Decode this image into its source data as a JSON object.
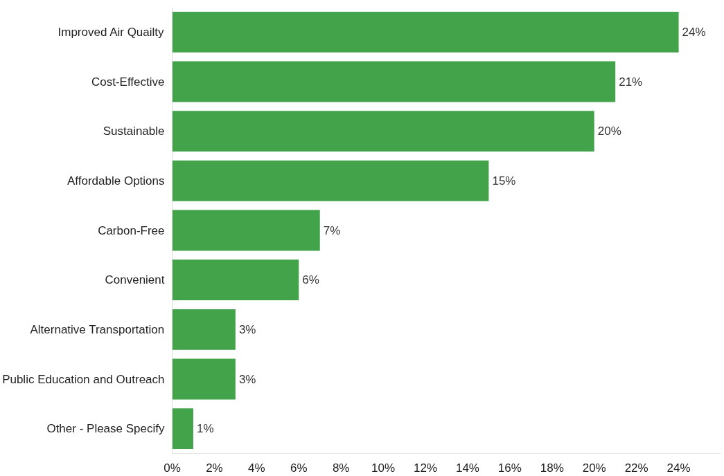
{
  "chart_data": {
    "type": "bar",
    "orientation": "horizontal",
    "categories": [
      "Improved Air Quailty",
      "Cost-Effective",
      "Sustainable",
      "Affordable Options",
      "Carbon-Free",
      "Convenient",
      "Alternative Transportation",
      "Public Education and Outreach",
      "Other - Please Specify"
    ],
    "values": [
      24,
      21,
      20,
      15,
      7,
      6,
      3,
      3,
      1
    ],
    "value_labels": [
      "24%",
      "21%",
      "20%",
      "15%",
      "7%",
      "6%",
      "3%",
      "3%",
      "1%"
    ],
    "color": "#43a34a",
    "xlim": [
      0,
      26
    ],
    "xticks": [
      {
        "value": 0,
        "label": "0%"
      },
      {
        "value": 2,
        "label": "2%"
      },
      {
        "value": 4,
        "label": "4%"
      },
      {
        "value": 6,
        "label": "6%"
      },
      {
        "value": 8,
        "label": "8%"
      },
      {
        "value": 10,
        "label": "10%"
      },
      {
        "value": 12,
        "label": "12%"
      },
      {
        "value": 14,
        "label": "14%"
      },
      {
        "value": 16,
        "label": "16%"
      },
      {
        "value": 18,
        "label": "18%"
      },
      {
        "value": 20,
        "label": "20%"
      },
      {
        "value": 22,
        "label": "22%"
      },
      {
        "value": 24,
        "label": "24%"
      }
    ],
    "grid": false
  }
}
